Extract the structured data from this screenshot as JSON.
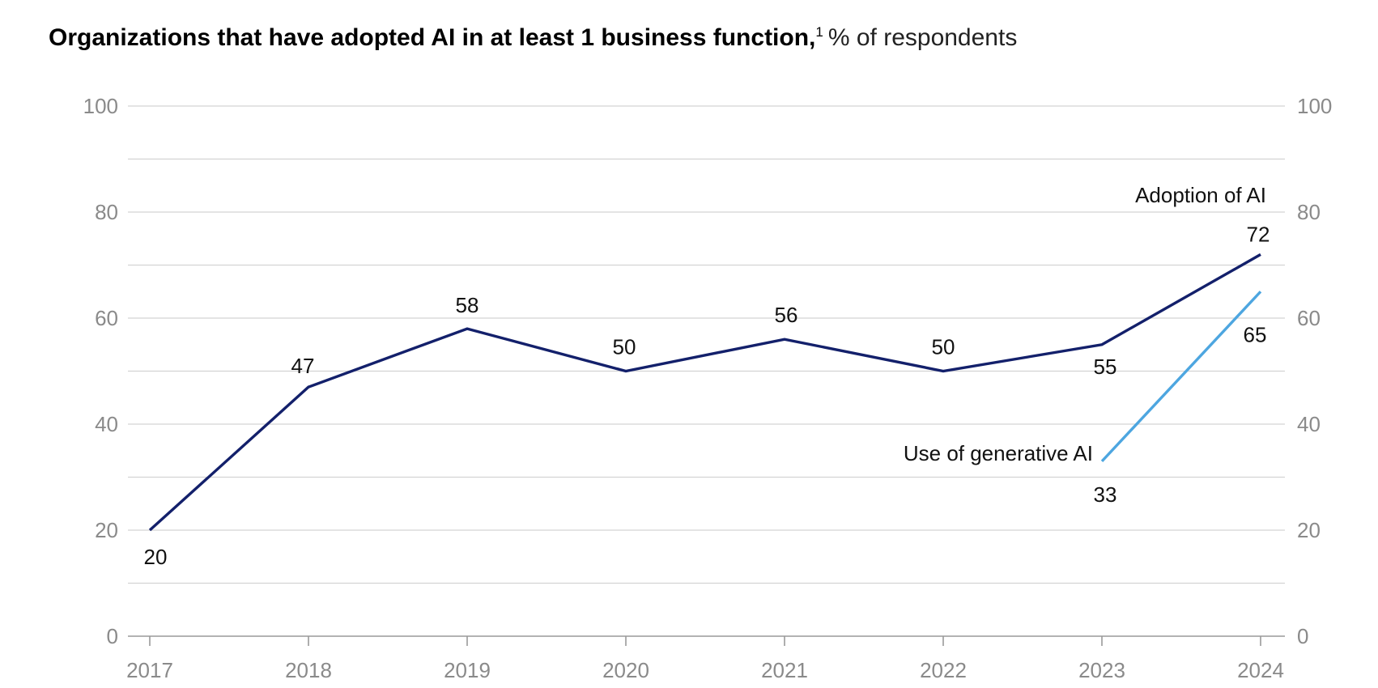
{
  "title": {
    "main": "Organizations that have adopted AI in at least 1 business function,",
    "footnote_mark": "1",
    "unit": "% of respondents"
  },
  "colors": {
    "adoption": "#13206b",
    "genai": "#4da6e0",
    "grid": "#d3d3d3",
    "axis": "#9a9a9a",
    "tick_text": "#8a8a8a"
  },
  "chart_data": {
    "type": "line",
    "x": [
      "2017",
      "2018",
      "2019",
      "2020",
      "2021",
      "2022",
      "2023",
      "2024"
    ],
    "ylim": [
      0,
      100
    ],
    "y_ticks": [
      0,
      20,
      40,
      60,
      80,
      100
    ],
    "grid_step": 10,
    "grid": true,
    "dual_y_axis": true,
    "series": [
      {
        "name": "Adoption of AI",
        "color_key": "adoption",
        "x": [
          "2017",
          "2018",
          "2019",
          "2020",
          "2021",
          "2022",
          "2023",
          "2024"
        ],
        "values": [
          20,
          47,
          58,
          50,
          56,
          50,
          55,
          72
        ],
        "labels": [
          "20",
          "47",
          "58",
          "50",
          "56",
          "50",
          "55",
          "72"
        ]
      },
      {
        "name": "Use of generative AI",
        "color_key": "genai",
        "x": [
          "2023",
          "2024"
        ],
        "values": [
          33,
          65
        ],
        "labels": [
          "33",
          "65"
        ]
      }
    ]
  }
}
